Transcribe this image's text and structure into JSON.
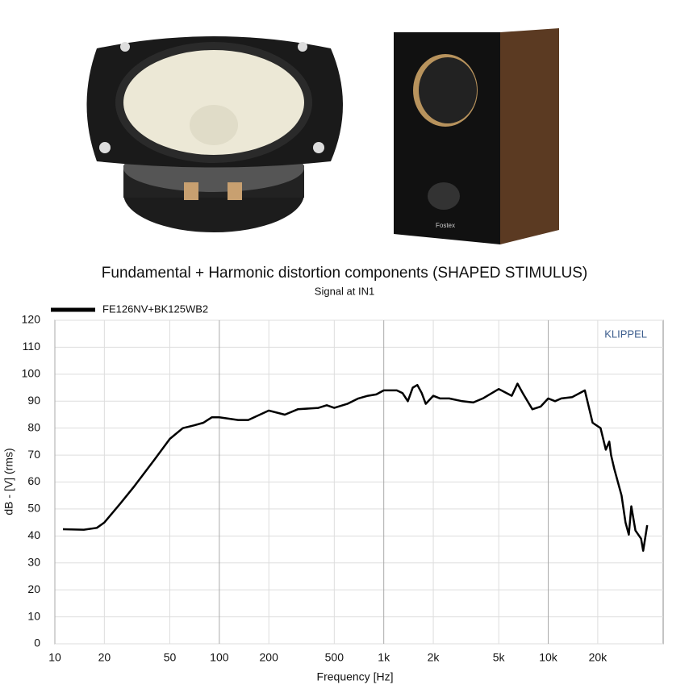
{
  "chart_data": {
    "type": "line",
    "title": "Fundamental + Harmonic distortion components (SHAPED STIMULUS)",
    "subtitle": "Signal at IN1",
    "watermark": "KLIPPEL",
    "x_label": "Frequency [Hz]",
    "y_label": "dB - [V]  (rms)",
    "x_scale": "log",
    "grid": true,
    "xlim": [
      10,
      50000
    ],
    "ylim": [
      0,
      120
    ],
    "xticks": [
      10,
      20,
      50,
      100,
      200,
      500,
      {
        "value": 1000,
        "label": "1k"
      },
      {
        "value": 2000,
        "label": "2k"
      },
      {
        "value": 5000,
        "label": "5k"
      },
      {
        "value": 10000,
        "label": "10k"
      },
      {
        "value": 20000,
        "label": "20k"
      }
    ],
    "yticks": [
      0,
      10,
      20,
      30,
      40,
      50,
      60,
      70,
      80,
      90,
      100,
      110,
      120
    ],
    "x": [
      11.2,
      15,
      18,
      20,
      25,
      30,
      40,
      50,
      60,
      70,
      80,
      90,
      100,
      130,
      150,
      200,
      250,
      300,
      400,
      450,
      500,
      600,
      700,
      800,
      900,
      1000,
      1200,
      1300,
      1400,
      1500,
      1600,
      1700,
      1800,
      2000,
      2200,
      2500,
      3000,
      3500,
      4000,
      5000,
      6000,
      6500,
      7000,
      8000,
      9000,
      10000,
      11000,
      12000,
      14000,
      16700,
      18600,
      20800,
      22400,
      23500,
      24100,
      25200,
      27900,
      29500,
      30900,
      32000,
      33900,
      36700,
      37800,
      40000
    ],
    "series": [
      {
        "name": "FE126NV+BK125WB2",
        "color": "#000000",
        "values": [
          42.5,
          42.3,
          43,
          45,
          52,
          58,
          68,
          76,
          80,
          81,
          82,
          84,
          84,
          83,
          83,
          86.5,
          85,
          87,
          87.5,
          88.5,
          87.5,
          89,
          91,
          92,
          92.5,
          94,
          94,
          93,
          90,
          95,
          96,
          93,
          89,
          92,
          91,
          91,
          90,
          89.5,
          91,
          94.5,
          92,
          96.5,
          93,
          87,
          88,
          91,
          90,
          91,
          91.5,
          94,
          82,
          80,
          72,
          75,
          70,
          65,
          55,
          45,
          40.5,
          51,
          42,
          39,
          34.5,
          44
        ]
      }
    ]
  }
}
